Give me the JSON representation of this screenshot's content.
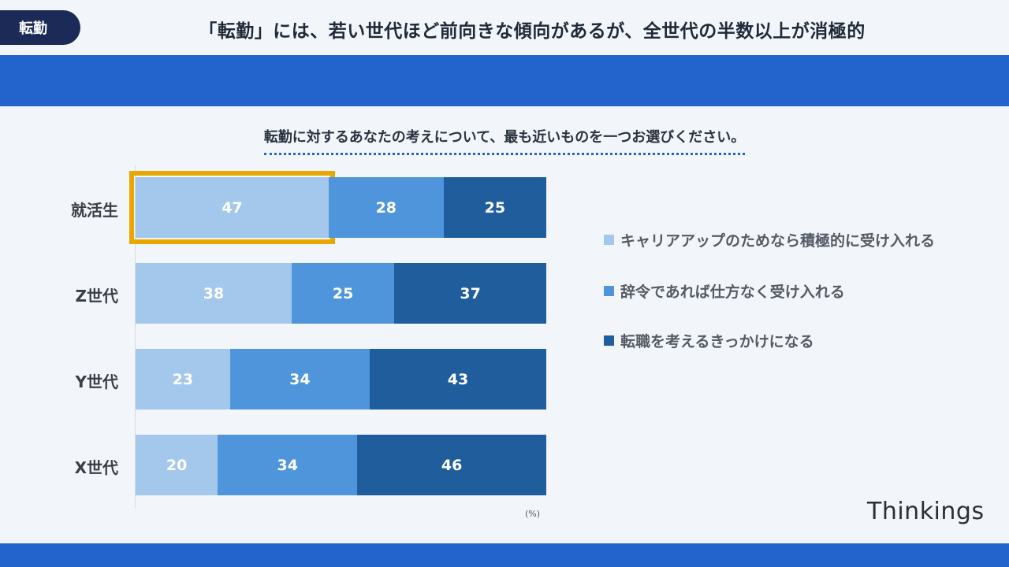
{
  "header": {
    "tag": "転勤",
    "title": "「転勤」には、若い世代ほど前向きな傾向があるが、全世代の半数以上が消極的"
  },
  "question": "転勤に対するあなたの考えについて、最も近いものを一つお選びください。",
  "brand": "Thinkings",
  "chart_data": {
    "type": "bar",
    "orientation": "horizontal-stacked-100",
    "categories": [
      "就活生",
      "Z世代",
      "Y世代",
      "X世代"
    ],
    "series": [
      {
        "name": "キャリアアップのためなら積極的に受け入れる",
        "values": [
          47,
          38,
          23,
          20
        ],
        "color": "#a3c8ec"
      },
      {
        "name": "辞令であれば仕方なく受け入れる",
        "values": [
          28,
          25,
          34,
          34
        ],
        "color": "#4f95dc"
      },
      {
        "name": "転職を考えるきっかけになる",
        "values": [
          25,
          37,
          43,
          46
        ],
        "color": "#1f5d9c"
      }
    ],
    "unit": "(%)",
    "xlim": [
      0,
      100
    ],
    "highlight": {
      "category": "就活生",
      "series": "キャリアアップのためなら積極的に受け入れる",
      "color": "#e8a800"
    },
    "legend_position": "right"
  }
}
